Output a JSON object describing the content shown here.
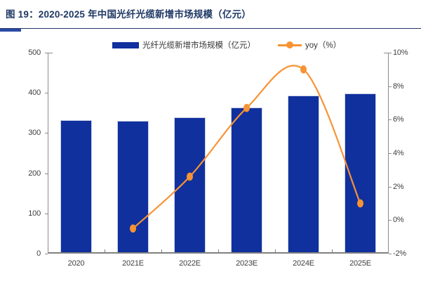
{
  "figure": {
    "title": "图 19：2020-2025 年中国光纤光缆新增市场规模（亿元）",
    "title_color": "#1f3864",
    "rule_color": "#24356b",
    "rule_accent_color": "#2b4aa5"
  },
  "chart_data": {
    "type": "bar",
    "subtype": "bar-line-combo",
    "categories": [
      "2020",
      "2021E",
      "2022E",
      "2023E",
      "2024E",
      "2025E"
    ],
    "series": [
      {
        "name": "光纤光缆新增市场规模（亿元）",
        "type": "bar",
        "axis": "left",
        "color": "#10309e",
        "values": [
          333,
          330,
          340,
          363,
          394,
          398
        ]
      },
      {
        "name": "yoy（%）",
        "type": "line",
        "axis": "right",
        "color": "#f79333",
        "values": [
          null,
          -0.5,
          2.6,
          6.7,
          9.0,
          1.0
        ]
      }
    ],
    "left_axis": {
      "min": 0,
      "max": 500,
      "step": 100,
      "tick_labels": [
        "0",
        "100",
        "200",
        "300",
        "400",
        "500"
      ]
    },
    "right_axis": {
      "min": -2,
      "max": 10,
      "step": 2,
      "tick_labels": [
        "-2%",
        "0%",
        "2%",
        "4%",
        "6%",
        "8%",
        "10%"
      ]
    },
    "grid": false,
    "legend_position": "top"
  }
}
